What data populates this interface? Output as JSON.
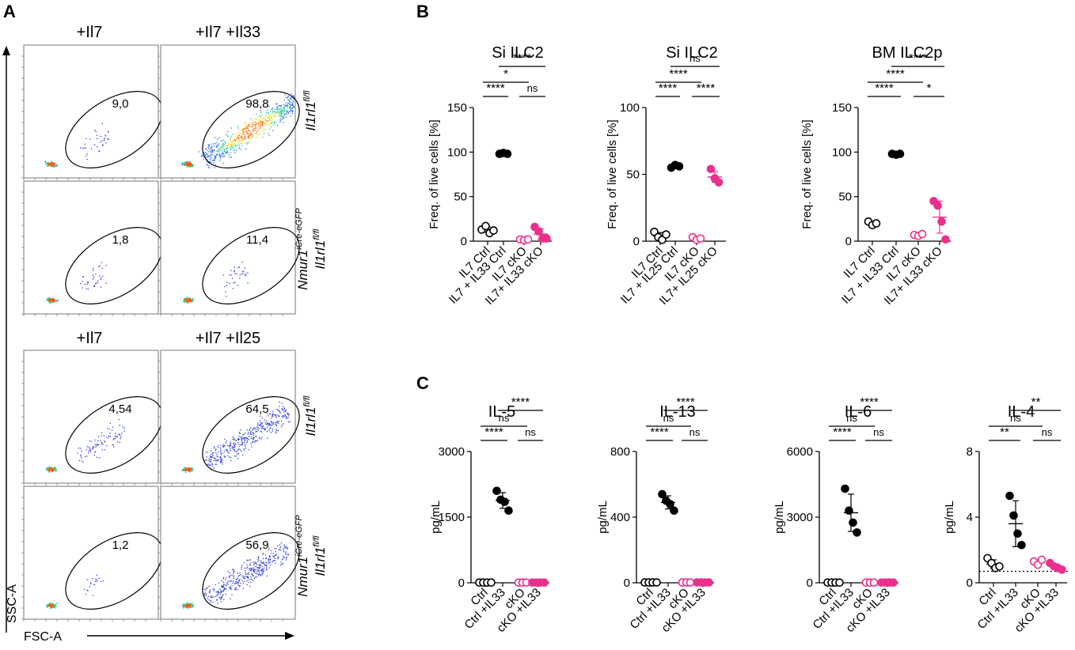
{
  "panel_labels": {
    "a": "A",
    "b": "B",
    "c": "C"
  },
  "colors": {
    "ctrl": "#000000",
    "cko": "#e8308c",
    "gate": "#000000",
    "axis": "#000000"
  },
  "flow": {
    "x_axis_label": "FSC-A",
    "y_axis_label": "SSC-A",
    "row_labels": [
      {
        "gene": "Il1rl1",
        "sup": "fl/fl",
        "prefix": "",
        "prefix_sup": ""
      },
      {
        "gene": "Il1rl1",
        "sup": "fl/fl",
        "prefix": "Nmur1",
        "prefix_sup": "iCre-eGFP"
      },
      {
        "gene": "Il1rl1",
        "sup": "fl/fl",
        "prefix": "",
        "prefix_sup": ""
      },
      {
        "gene": "Il1rl1",
        "sup": "fl/fl",
        "prefix": "Nmur1",
        "prefix_sup": "iCre-eGFP"
      }
    ],
    "column_titles_top": [
      "+Il7",
      "+Il7 +Il33"
    ],
    "column_titles_bottom": [
      "+Il7",
      "+Il7 +Il25"
    ],
    "gate_values": [
      [
        "9,0",
        "98,8"
      ],
      [
        "1,8",
        "11,4"
      ],
      [
        "4,54",
        "64,5"
      ],
      [
        "1,2",
        "56,9"
      ]
    ]
  },
  "chart_data": [
    {
      "id": "b1",
      "type": "scatter",
      "title": "Si ILC2",
      "ylabel": "Freq. of live cells [%]",
      "ylim": [
        0,
        150
      ],
      "yticks": [
        "0",
        "50",
        "100",
        "150"
      ],
      "categories": [
        "IL7 Ctrl",
        "IL7 + IL33 Ctrl",
        "IL7 cKO",
        "IL7+ IL33 cKO"
      ],
      "series": [
        {
          "name": "IL7 Ctrl",
          "color": "ctrl",
          "filled": false,
          "values": [
            13,
            17,
            9,
            12
          ],
          "mean": 13,
          "sd": 3
        },
        {
          "name": "IL7 + IL33 Ctrl",
          "color": "ctrl",
          "filled": true,
          "values": [
            98,
            99,
            98
          ],
          "mean": 98,
          "sd": 0.5
        },
        {
          "name": "IL7 cKO",
          "color": "cko",
          "filled": false,
          "values": [
            2,
            1,
            2
          ],
          "mean": 1.7,
          "sd": 0.5
        },
        {
          "name": "IL7+ IL33 cKO",
          "color": "cko",
          "filled": true,
          "values": [
            16,
            11,
            3,
            3
          ],
          "mean": 8,
          "sd": 6
        }
      ],
      "comparisons": [
        {
          "a": 1,
          "b": 3,
          "label": "****"
        },
        {
          "a": 0,
          "b": 2,
          "label": "*"
        },
        {
          "a": 0,
          "b": 1,
          "label": "****"
        },
        {
          "a": 2,
          "b": 3,
          "label": "ns"
        }
      ]
    },
    {
      "id": "b2",
      "type": "scatter",
      "title": "Si ILC2",
      "ylabel": "Freq. of live cells [%]",
      "ylim": [
        0,
        100
      ],
      "yticks": [
        "0",
        "50",
        "100"
      ],
      "categories": [
        "IL7 Ctrl",
        "IL7 + IL25 Ctrl",
        "IL7 cKO",
        "IL7+ IL25 cKO"
      ],
      "series": [
        {
          "name": "IL7 Ctrl",
          "color": "ctrl",
          "filled": false,
          "values": [
            7,
            3,
            1,
            5
          ],
          "mean": 4,
          "sd": 2.5
        },
        {
          "name": "IL7 + IL25 Ctrl",
          "color": "ctrl",
          "filled": true,
          "values": [
            55,
            57,
            56
          ],
          "mean": 56,
          "sd": 1
        },
        {
          "name": "IL7 cKO",
          "color": "cko",
          "filled": false,
          "values": [
            3,
            1,
            2
          ],
          "mean": 2,
          "sd": 1
        },
        {
          "name": "IL7+ IL25 cKO",
          "color": "cko",
          "filled": true,
          "values": [
            54,
            47,
            44
          ],
          "mean": 48,
          "sd": 4
        }
      ],
      "comparisons": [
        {
          "a": 1,
          "b": 3,
          "label": "ns"
        },
        {
          "a": 0,
          "b": 2,
          "label": "****"
        },
        {
          "a": 0,
          "b": 1,
          "label": "****"
        },
        {
          "a": 2,
          "b": 3,
          "label": "****"
        }
      ]
    },
    {
      "id": "b3",
      "type": "scatter",
      "title": "BM ILC2p",
      "ylabel": "Freq. of live cells [%]",
      "ylim": [
        0,
        150
      ],
      "yticks": [
        "0",
        "50",
        "100",
        "150"
      ],
      "categories": [
        "IL7 Ctrl",
        "IL7 + IL33 Ctrl",
        "IL7 cKO",
        "IL7+ IL33 cKO"
      ],
      "series": [
        {
          "name": "IL7 Ctrl",
          "color": "ctrl",
          "filled": false,
          "values": [
            22,
            18,
            20
          ],
          "mean": 20,
          "sd": 2
        },
        {
          "name": "IL7 + IL33 Ctrl",
          "color": "ctrl",
          "filled": true,
          "values": [
            98,
            97,
            98
          ],
          "mean": 98,
          "sd": 0.5
        },
        {
          "name": "IL7 cKO",
          "color": "cko",
          "filled": false,
          "values": [
            7,
            6,
            8
          ],
          "mean": 7,
          "sd": 1
        },
        {
          "name": "IL7+ IL33 cKO",
          "color": "cko",
          "filled": true,
          "values": [
            45,
            40,
            22,
            2
          ],
          "mean": 27,
          "sd": 18
        }
      ],
      "comparisons": [
        {
          "a": 1,
          "b": 3,
          "label": "****"
        },
        {
          "a": 0,
          "b": 2,
          "label": "****"
        },
        {
          "a": 0,
          "b": 1,
          "label": "****"
        },
        {
          "a": 2,
          "b": 3,
          "label": "*"
        }
      ]
    },
    {
      "id": "c1",
      "type": "scatter",
      "title": "IL-5",
      "ylabel": "pg/mL",
      "ylim": [
        0,
        3000
      ],
      "yticks": [
        "0",
        "1500",
        "3000"
      ],
      "categories": [
        "Ctrl",
        "Ctrl +IL33",
        "cKO",
        "cKO +IL33"
      ],
      "series": [
        {
          "name": "Ctrl",
          "color": "ctrl",
          "filled": false,
          "values": [
            5,
            5,
            5,
            5
          ],
          "mean": 5,
          "sd": 0
        },
        {
          "name": "Ctrl +IL33",
          "color": "ctrl",
          "filled": true,
          "values": [
            2100,
            1900,
            1850,
            1650
          ],
          "mean": 1880,
          "sd": 180
        },
        {
          "name": "cKO",
          "color": "cko",
          "filled": false,
          "values": [
            5,
            5,
            5
          ],
          "mean": 5,
          "sd": 0
        },
        {
          "name": "cKO +IL33",
          "color": "cko",
          "filled": true,
          "values": [
            5,
            5,
            5,
            5
          ],
          "mean": 5,
          "sd": 0
        }
      ],
      "comparisons": [
        {
          "a": 1,
          "b": 3,
          "label": "****"
        },
        {
          "a": 0,
          "b": 2,
          "label": "ns"
        },
        {
          "a": 0,
          "b": 1,
          "label": "****"
        },
        {
          "a": 2,
          "b": 3,
          "label": "ns"
        }
      ]
    },
    {
      "id": "c2",
      "type": "scatter",
      "title": "IL-13",
      "ylabel": "pg/mL",
      "ylim": [
        0,
        800
      ],
      "yticks": [
        "0",
        "400",
        "800"
      ],
      "categories": [
        "Ctrl",
        "Ctrl +IL33",
        "cKO",
        "cKO +IL33"
      ],
      "series": [
        {
          "name": "Ctrl",
          "color": "ctrl",
          "filled": false,
          "values": [
            2,
            2,
            2,
            2
          ],
          "mean": 2,
          "sd": 0
        },
        {
          "name": "Ctrl +IL33",
          "color": "ctrl",
          "filled": true,
          "values": [
            540,
            500,
            480,
            440
          ],
          "mean": 490,
          "sd": 40
        },
        {
          "name": "cKO",
          "color": "cko",
          "filled": false,
          "values": [
            2,
            2,
            2
          ],
          "mean": 2,
          "sd": 0
        },
        {
          "name": "cKO +IL33",
          "color": "cko",
          "filled": true,
          "values": [
            2,
            2,
            2,
            2
          ],
          "mean": 2,
          "sd": 0
        }
      ],
      "comparisons": [
        {
          "a": 1,
          "b": 3,
          "label": "****"
        },
        {
          "a": 0,
          "b": 2,
          "label": "ns"
        },
        {
          "a": 0,
          "b": 1,
          "label": "****"
        },
        {
          "a": 2,
          "b": 3,
          "label": "ns"
        }
      ]
    },
    {
      "id": "c3",
      "type": "scatter",
      "title": "IL-6",
      "ylabel": "pg/mL",
      "ylim": [
        0,
        6000
      ],
      "yticks": [
        "0",
        "3000",
        "6000"
      ],
      "categories": [
        "Ctrl",
        "Ctrl +IL33",
        "cKO",
        "cKO +IL33"
      ],
      "series": [
        {
          "name": "Ctrl",
          "color": "ctrl",
          "filled": false,
          "values": [
            10,
            10,
            10,
            10
          ],
          "mean": 10,
          "sd": 0
        },
        {
          "name": "Ctrl +IL33",
          "color": "ctrl",
          "filled": true,
          "values": [
            4300,
            3300,
            2750,
            2300
          ],
          "mean": 3200,
          "sd": 850
        },
        {
          "name": "cKO",
          "color": "cko",
          "filled": false,
          "values": [
            10,
            10,
            10
          ],
          "mean": 10,
          "sd": 0
        },
        {
          "name": "cKO +IL33",
          "color": "cko",
          "filled": true,
          "values": [
            10,
            10,
            10,
            10
          ],
          "mean": 10,
          "sd": 0
        }
      ],
      "comparisons": [
        {
          "a": 1,
          "b": 3,
          "label": "****"
        },
        {
          "a": 0,
          "b": 2,
          "label": "ns"
        },
        {
          "a": 0,
          "b": 1,
          "label": "****"
        },
        {
          "a": 2,
          "b": 3,
          "label": "ns"
        }
      ]
    },
    {
      "id": "c4",
      "type": "scatter",
      "title": "IL-4",
      "ylabel": "pg/mL",
      "ylim": [
        0,
        8
      ],
      "yticks": [
        "0",
        "4",
        "8"
      ],
      "categories": [
        "Ctrl",
        "Ctrl +IL33",
        "cKO",
        "cKO +IL33"
      ],
      "detection_limit": 0.7,
      "series": [
        {
          "name": "Ctrl",
          "color": "ctrl",
          "filled": false,
          "values": [
            1.5,
            1.2,
            0.9,
            1.0
          ],
          "mean": 1.15,
          "sd": 0.25
        },
        {
          "name": "Ctrl +IL33",
          "color": "ctrl",
          "filled": true,
          "values": [
            5.3,
            4.1,
            3.0,
            2.3
          ],
          "mean": 3.6,
          "sd": 1.4
        },
        {
          "name": "cKO",
          "color": "cko",
          "filled": false,
          "values": [
            1.3,
            1.1,
            1.4
          ],
          "mean": 1.25,
          "sd": 0.15
        },
        {
          "name": "cKO +IL33",
          "color": "cko",
          "filled": true,
          "values": [
            1.2,
            1.0,
            0.9,
            0.8
          ],
          "mean": 1.0,
          "sd": 0.15
        }
      ],
      "comparisons": [
        {
          "a": 1,
          "b": 3,
          "label": "**"
        },
        {
          "a": 0,
          "b": 2,
          "label": "ns"
        },
        {
          "a": 0,
          "b": 1,
          "label": "**"
        },
        {
          "a": 2,
          "b": 3,
          "label": "ns"
        }
      ]
    }
  ]
}
